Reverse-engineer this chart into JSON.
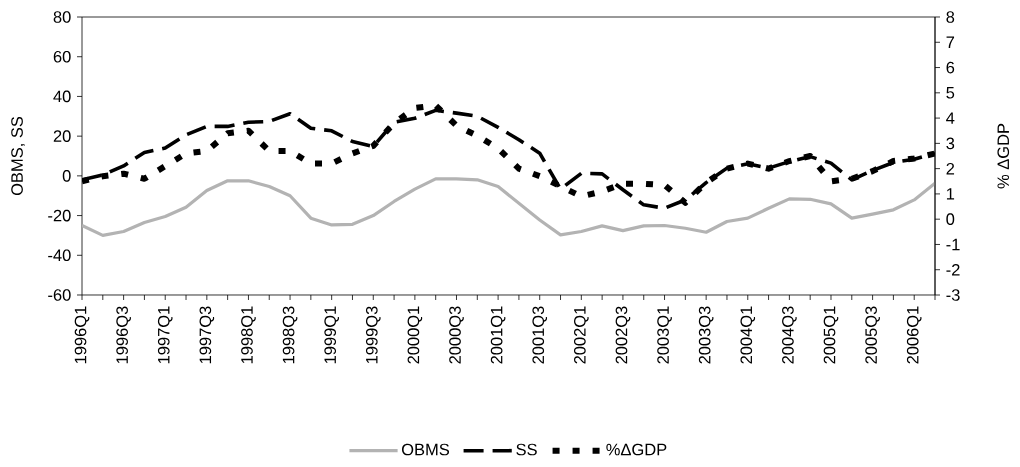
{
  "chart_data": {
    "type": "line",
    "categories": [
      "1996Q1",
      null,
      "1996Q3",
      null,
      "1997Q1",
      null,
      "1997Q3",
      null,
      "1998Q1",
      null,
      "1998Q3",
      null,
      "1999Q1",
      null,
      "1999Q3",
      null,
      "2000Q1",
      null,
      "2000Q3",
      null,
      "2001Q1",
      null,
      "2001Q3",
      null,
      "2002Q1",
      null,
      "2002Q3",
      null,
      "2003Q1",
      null,
      "2003Q3",
      null,
      "2004Q1",
      null,
      "2004Q3",
      null,
      "2005Q1",
      null,
      "2005Q3",
      null,
      "2006Q1",
      null
    ],
    "series": [
      {
        "name": "OBMS",
        "color": "#b3b3b3",
        "line_style": "solid",
        "values": [
          -25,
          -30,
          -28,
          -23.5,
          -20.5,
          -15.8,
          -7.4,
          -2.5,
          -2.5,
          -5.4,
          -10,
          -21.3,
          -24.7,
          -24.4,
          -20,
          -12.9,
          -6.7,
          -1.5,
          -1.5,
          -2,
          -5.4,
          -13.8,
          -22.2,
          -29.7,
          -28,
          -25.2,
          -27.6,
          -25.2,
          -25,
          -26.4,
          -28.4,
          -23,
          -21.3,
          -16.3,
          -11.6,
          -11.8,
          -14.1,
          -21.3,
          -19.3,
          -17.1,
          -12.1,
          -3.7
        ]
      },
      {
        "name": "SS",
        "color": "#000000",
        "line_style": "dashed",
        "values": [
          -2,
          0.5,
          5,
          11.8,
          14,
          20.7,
          24.9,
          24.9,
          27,
          27.4,
          31.3,
          24,
          22.7,
          17.3,
          14.8,
          27,
          29,
          33,
          31.6,
          30,
          24.4,
          18.2,
          11.4,
          -6.7,
          1.3,
          1,
          -7,
          -14.6,
          -16.3,
          -12.1,
          -3.4,
          3.9,
          6.1,
          3.9,
          7.2,
          9.7,
          6.4,
          -2,
          2.7,
          6.7,
          8.4,
          11.4
        ]
      },
      {
        "name": "%ΔGDP",
        "color": "#000000",
        "line_style": "dotted",
        "axis": "y2",
        "values": [
          1.5,
          1.7,
          1.8,
          1.6,
          2.1,
          2.6,
          2.7,
          3.4,
          3.5,
          2.7,
          2.7,
          2.2,
          2.2,
          2.6,
          2.9,
          3.8,
          4.4,
          4.5,
          3.7,
          3.3,
          2.8,
          2,
          1.7,
          1.3,
          0.9,
          1.1,
          1.4,
          1.4,
          1.35,
          0.65,
          1.45,
          2,
          2.2,
          2,
          2.3,
          2.5,
          1.5,
          1.6,
          1.9,
          2.3,
          2.4,
          2.6
        ]
      }
    ],
    "ylabel": "OBMS, SS",
    "y2label": "% ΔGDP",
    "ylim": [
      -60,
      80
    ],
    "yticks": [
      -60,
      -40,
      -20,
      0,
      20,
      40,
      60,
      80
    ],
    "y2lim": [
      -3,
      8
    ],
    "y2ticks": [
      -3,
      -2,
      -1,
      0,
      1,
      2,
      3,
      4,
      5,
      6,
      7,
      8
    ],
    "legend": "bottom"
  }
}
